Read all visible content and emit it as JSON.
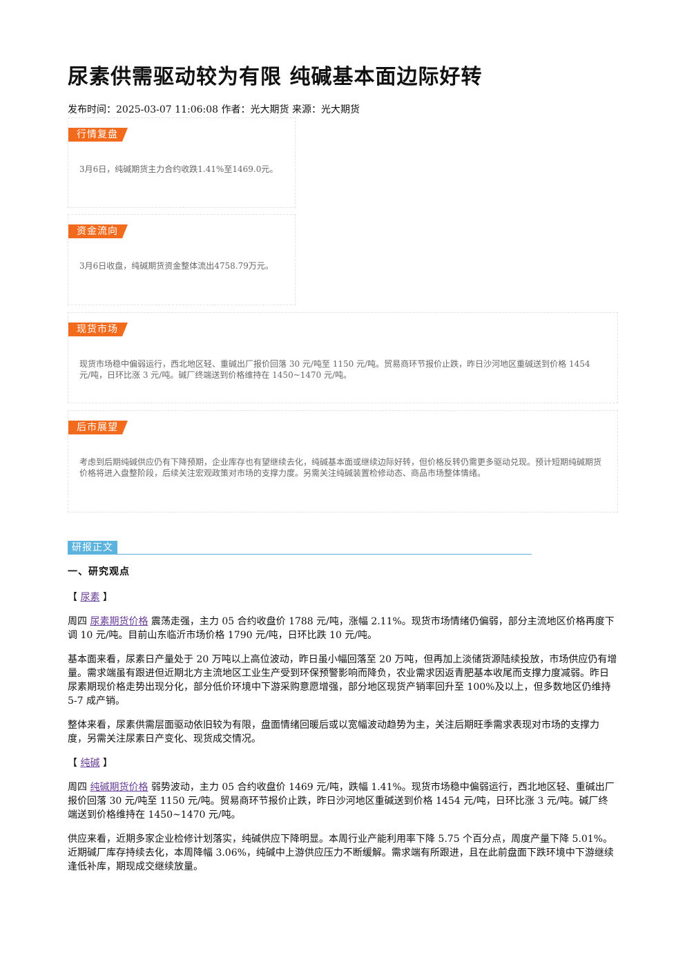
{
  "header": {
    "title": "尿素供需驱动较为有限 纯碱基本面边际好转",
    "meta": "发布时间：2025-03-07 11:06:08 作者：光大期货 来源：光大期货"
  },
  "panels": [
    {
      "label": "行情复盘",
      "text": "3月6日，纯碱期货主力合约收跌1.41%至1469.0元。"
    },
    {
      "label": "资金流向",
      "text": "3月6日收盘，纯碱期货资金整体流出4758.79万元。"
    },
    {
      "label": "现货市场",
      "text": "现货市场稳中偏弱运行，西北地区轻、重碱出厂报价回落 30 元/吨至 1150 元/吨。贸易商环节报价止跌，昨日沙河地区重碱送到价格 1454 元/吨，日环比涨 3 元/吨。碱厂终端送到价格维持在 1450~1470 元/吨。"
    },
    {
      "label": "后市展望",
      "text": "考虑到后期纯碱供应仍有下降预期，企业库存也有望继续去化，纯碱基本面或继续边际好转，但价格反转仍需更多驱动兑现。预计短期纯碱期货价格将进入盘整阶段，后续关注宏观政策对市场的支撑力度。另需关注纯碱装置检修动态、商品市场整体情绪。"
    }
  ],
  "article": {
    "tag": "研报正文",
    "heading": "一、研究观点",
    "open": "【",
    "close": "】",
    "sections": [
      {
        "name": "尿素",
        "paragraphs": [
          {
            "lead": "周四",
            "link": "尿素期货价格",
            "text": "震荡走强，主力 05 合约收盘价 1788 元/吨，涨幅 2.11%。现货市场情绪仍偏弱，部分主流地区价格再度下调 10 元/吨。目前山东临沂市场价格 1790 元/吨，日环比跌 10 元/吨。"
          },
          {
            "text": "基本面来看，尿素日产量处于 20 万吨以上高位波动，昨日虽小幅回落至 20 万吨，但再加上淡储货源陆续投放，市场供应仍有增量。需求端虽有跟进但近期北方主流地区工业生产受到环保预警影响而降负，农业需求因返青肥基本收尾而支撑力度减弱。昨日尿素期现价格走势出现分化，部分低价环境中下游采购意愿增强，部分地区现货产销率回升至 100%及以上，但多数地区仍维持 5-7 成产销。"
          },
          {
            "text": "整体来看，尿素供需层面驱动依旧较为有限，盘面情绪回暖后或以宽幅波动趋势为主，关注后期旺季需求表现对市场的支撑力度，另需关注尿素日产变化、现货成交情况。"
          }
        ]
      },
      {
        "name": "纯碱",
        "paragraphs": [
          {
            "lead": "周四",
            "link": "纯碱期货价格",
            "text": "弱势波动，主力 05 合约收盘价 1469 元/吨，跌幅 1.41%。现货市场稳中偏弱运行，西北地区轻、重碱出厂报价回落 30 元/吨至 1150 元/吨。贸易商环节报价止跌，昨日沙河地区重碱送到价格 1454 元/吨，日环比涨 3 元/吨。碱厂终端送到价格维持在 1450~1470 元/吨。"
          },
          {
            "text": "供应来看，近期多家企业检修计划落实，纯碱供应下降明显。本周行业产能利用率下降 5.75 个百分点，周度产量下降 5.01%。近期碱厂库存持续去化，本周降幅 3.06%，纯碱中上游供应压力不断缓解。需求端有所跟进，且在此前盘面下跌环境中下游继续逢低补库，期现成交继续放量。"
          }
        ]
      }
    ]
  }
}
